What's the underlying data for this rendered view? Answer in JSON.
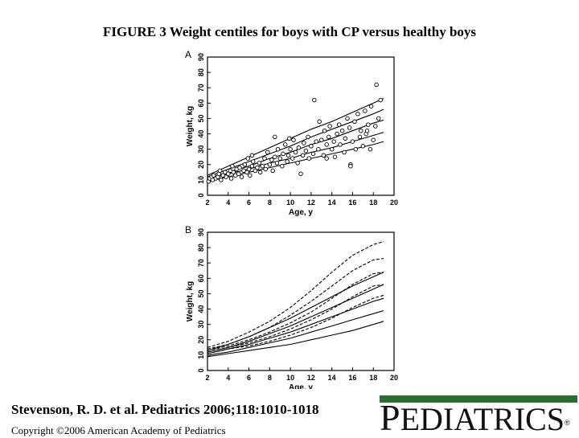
{
  "title": "FIGURE 3 Weight centiles for boys with CP versus healthy boys",
  "citation": "Stevenson, R. D. et al. Pediatrics 2006;118:1010-1018",
  "copyright": "Copyright ©2006 American Academy of Pediatrics",
  "journal": {
    "logo_first": "P",
    "logo_rest": "EDIATRICS",
    "reg": "®",
    "bar_color": "#2e6b35"
  },
  "chart_data": [
    {
      "panel": "A",
      "type": "scatter",
      "xlabel": "Age, y",
      "ylabel": "Weight, kg",
      "xlim": [
        2,
        20
      ],
      "ylim": [
        0,
        90
      ],
      "xticks": [
        2,
        4,
        6,
        8,
        10,
        12,
        14,
        16,
        18,
        20
      ],
      "yticks": [
        0,
        10,
        20,
        30,
        40,
        50,
        60,
        70,
        80,
        90
      ],
      "points": [
        [
          2.1,
          9
        ],
        [
          2.2,
          11
        ],
        [
          2.4,
          12
        ],
        [
          2.5,
          10
        ],
        [
          2.6,
          13
        ],
        [
          2.8,
          11
        ],
        [
          3.0,
          12
        ],
        [
          3.1,
          14
        ],
        [
          3.3,
          10
        ],
        [
          3.5,
          13
        ],
        [
          3.7,
          15
        ],
        [
          3.8,
          12
        ],
        [
          4.0,
          14
        ],
        [
          4.2,
          16
        ],
        [
          4.3,
          11
        ],
        [
          4.5,
          15
        ],
        [
          4.7,
          13
        ],
        [
          4.8,
          17
        ],
        [
          5.0,
          14
        ],
        [
          5.1,
          18
        ],
        [
          5.3,
          12
        ],
        [
          5.5,
          16
        ],
        [
          5.6,
          20
        ],
        [
          5.8,
          15
        ],
        [
          6.0,
          17
        ],
        [
          6.1,
          13
        ],
        [
          6.3,
          19
        ],
        [
          6.4,
          22
        ],
        [
          6.6,
          16
        ],
        [
          6.8,
          18
        ],
        [
          7.0,
          21
        ],
        [
          7.1,
          15
        ],
        [
          7.3,
          19
        ],
        [
          7.5,
          24
        ],
        [
          7.6,
          17
        ],
        [
          7.8,
          28
        ],
        [
          8.0,
          20
        ],
        [
          8.2,
          23
        ],
        [
          8.3,
          16
        ],
        [
          8.5,
          25
        ],
        [
          8.7,
          21
        ],
        [
          8.8,
          30
        ],
        [
          9.0,
          24
        ],
        [
          9.2,
          19
        ],
        [
          9.3,
          27
        ],
        [
          9.5,
          33
        ],
        [
          9.7,
          22
        ],
        [
          9.8,
          26
        ],
        [
          10.0,
          30
        ],
        [
          10.2,
          24
        ],
        [
          10.3,
          36
        ],
        [
          10.5,
          28
        ],
        [
          10.7,
          21
        ],
        [
          10.8,
          31
        ],
        [
          11.0,
          14
        ],
        [
          11.2,
          26
        ],
        [
          11.3,
          34
        ],
        [
          11.5,
          29
        ],
        [
          11.7,
          38
        ],
        [
          11.8,
          24
        ],
        [
          12.0,
          32
        ],
        [
          12.2,
          27
        ],
        [
          12.3,
          62
        ],
        [
          12.5,
          35
        ],
        [
          12.7,
          30
        ],
        [
          12.8,
          48
        ],
        [
          13.0,
          36
        ],
        [
          13.2,
          26
        ],
        [
          13.3,
          42
        ],
        [
          13.5,
          33
        ],
        [
          13.7,
          38
        ],
        [
          13.8,
          45
        ],
        [
          14.0,
          30
        ],
        [
          14.2,
          35
        ],
        [
          14.3,
          25
        ],
        [
          14.5,
          40
        ],
        [
          14.7,
          46
        ],
        [
          14.8,
          33
        ],
        [
          15.0,
          42
        ],
        [
          15.2,
          28
        ],
        [
          15.3,
          37
        ],
        [
          15.5,
          50
        ],
        [
          15.7,
          44
        ],
        [
          15.8,
          20
        ],
        [
          16.0,
          35
        ],
        [
          16.2,
          48
        ],
        [
          16.3,
          30
        ],
        [
          16.5,
          53
        ],
        [
          16.7,
          38
        ],
        [
          16.8,
          42
        ],
        [
          17.0,
          32
        ],
        [
          17.2,
          55
        ],
        [
          17.3,
          40
        ],
        [
          17.5,
          46
        ],
        [
          17.7,
          30
        ],
        [
          17.8,
          58
        ],
        [
          18.0,
          36
        ],
        [
          18.2,
          45
        ],
        [
          18.3,
          72
        ],
        [
          18.5,
          50
        ],
        [
          18.7,
          62
        ],
        [
          6.3,
          26
        ],
        [
          8.5,
          38
        ],
        [
          9.9,
          37
        ],
        [
          13.5,
          24
        ],
        [
          15.8,
          19
        ],
        [
          17.4,
          42
        ],
        [
          4.4,
          19
        ],
        [
          3.2,
          16
        ],
        [
          5.9,
          24
        ]
      ],
      "curves": [
        {
          "name": "",
          "style": "solid",
          "x": [
            2,
            4,
            6,
            8,
            10,
            12,
            14,
            16,
            18,
            19
          ],
          "y": [
            11,
            15,
            19,
            24,
            28,
            33,
            37,
            42,
            47,
            49
          ]
        },
        {
          "name": "",
          "style": "solid",
          "x": [
            2,
            4,
            6,
            8,
            10,
            12,
            14,
            16,
            18,
            19
          ],
          "y": [
            12,
            17,
            22,
            27,
            32,
            38,
            43,
            48,
            53,
            56
          ]
        },
        {
          "name": "",
          "style": "solid",
          "x": [
            2,
            4,
            6,
            8,
            10,
            12,
            14,
            16,
            18,
            19
          ],
          "y": [
            13,
            19,
            25,
            31,
            37,
            43,
            48,
            54,
            60,
            63
          ]
        },
        {
          "name": "",
          "style": "solid",
          "x": [
            2,
            4,
            6,
            8,
            10,
            12,
            14,
            16,
            18,
            19
          ],
          "y": [
            10,
            14,
            17,
            21,
            24,
            28,
            31,
            35,
            39,
            41
          ]
        },
        {
          "name": "",
          "style": "solid",
          "x": [
            2,
            4,
            6,
            8,
            10,
            12,
            14,
            16,
            18,
            19
          ],
          "y": [
            9,
            12,
            15,
            18,
            21,
            24,
            27,
            30,
            33,
            35
          ]
        }
      ]
    },
    {
      "panel": "B",
      "type": "line",
      "xlabel": "Age, y",
      "ylabel": "Weight, kg",
      "xlim": [
        2,
        20
      ],
      "ylim": [
        0,
        90
      ],
      "xticks": [
        2,
        4,
        6,
        8,
        10,
        12,
        14,
        16,
        18,
        20
      ],
      "yticks": [
        0,
        10,
        20,
        30,
        40,
        50,
        60,
        70,
        80,
        90
      ],
      "curves": [
        {
          "name": "",
          "style": "dashed",
          "x": [
            2,
            4,
            6,
            8,
            10,
            12,
            14,
            16,
            18,
            19
          ],
          "y": [
            15,
            19,
            25,
            32,
            41,
            52,
            64,
            75,
            82,
            84
          ]
        },
        {
          "name": "",
          "style": "dashed",
          "x": [
            2,
            4,
            6,
            8,
            10,
            12,
            14,
            16,
            18,
            19
          ],
          "y": [
            14,
            17,
            22,
            28,
            36,
            45,
            55,
            65,
            72,
            73
          ]
        },
        {
          "name": "",
          "style": "dashed",
          "x": [
            2,
            4,
            6,
            8,
            10,
            12,
            14,
            16,
            18,
            19
          ],
          "y": [
            13,
            16,
            20,
            25,
            31,
            38,
            47,
            56,
            63,
            64
          ]
        },
        {
          "name": "",
          "style": "dashed",
          "x": [
            2,
            4,
            6,
            8,
            10,
            12,
            14,
            16,
            18,
            19
          ],
          "y": [
            12,
            15,
            18,
            22,
            27,
            33,
            40,
            48,
            55,
            56
          ]
        },
        {
          "name": "",
          "style": "dashed",
          "x": [
            2,
            4,
            6,
            8,
            10,
            12,
            14,
            16,
            18,
            19
          ],
          "y": [
            11,
            14,
            16,
            19,
            23,
            28,
            34,
            41,
            47,
            49
          ]
        },
        {
          "name": "",
          "style": "solid",
          "x": [
            2,
            4,
            6,
            8,
            10,
            12,
            14,
            16,
            18,
            19
          ],
          "y": [
            13,
            17,
            22,
            28,
            34,
            41,
            48,
            55,
            61,
            64
          ]
        },
        {
          "name": "",
          "style": "solid",
          "x": [
            2,
            4,
            6,
            8,
            10,
            12,
            14,
            16,
            18,
            19
          ],
          "y": [
            12,
            15,
            19,
            24,
            29,
            35,
            41,
            47,
            53,
            56
          ]
        },
        {
          "name": "",
          "style": "solid",
          "x": [
            2,
            4,
            6,
            8,
            10,
            12,
            14,
            16,
            18,
            19
          ],
          "y": [
            11,
            14,
            17,
            21,
            25,
            30,
            35,
            40,
            45,
            47
          ]
        },
        {
          "name": "",
          "style": "solid",
          "x": [
            2,
            4,
            6,
            8,
            10,
            12,
            14,
            16,
            18,
            19
          ],
          "y": [
            10,
            12,
            15,
            18,
            21,
            25,
            29,
            33,
            37,
            39
          ]
        },
        {
          "name": "",
          "style": "solid",
          "x": [
            2,
            4,
            6,
            8,
            10,
            12,
            14,
            16,
            18,
            19
          ],
          "y": [
            9,
            11,
            13,
            15,
            17,
            20,
            23,
            26,
            30,
            32
          ]
        }
      ]
    }
  ]
}
